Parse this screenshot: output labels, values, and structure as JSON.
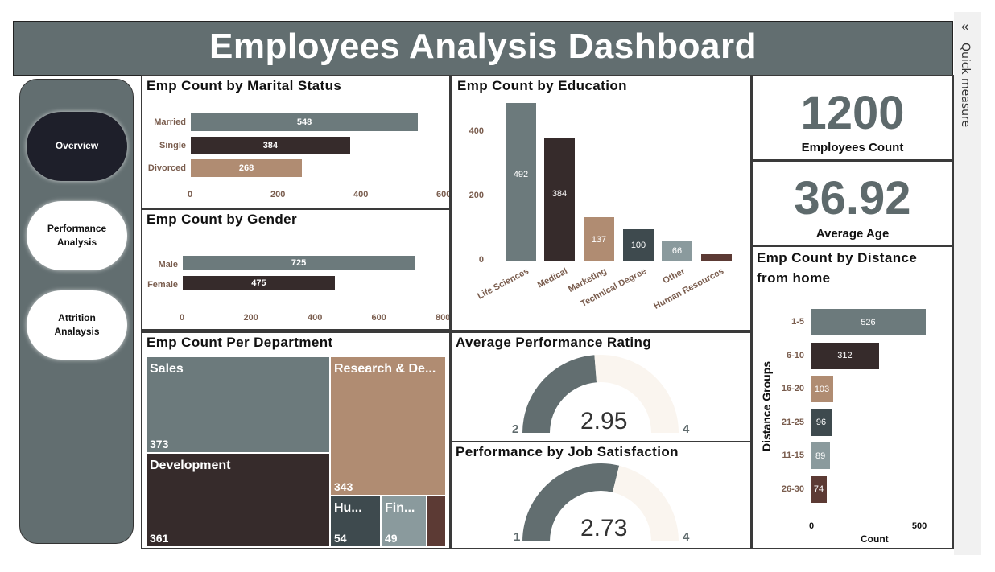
{
  "header": {
    "title": "Employees Analysis Dashboard"
  },
  "nav": {
    "overview": "Overview",
    "performance": "Performance\nAnalysis",
    "attrition": "Attrition\nAnalaysis"
  },
  "quick_measure": {
    "label": "Quick measure",
    "icon": "«"
  },
  "kpis": {
    "employees_count": {
      "value": "1200",
      "label": "Employees Count"
    },
    "average_age": {
      "value": "36.92",
      "label": "Average Age"
    }
  },
  "marital": {
    "title": "Emp Count by Marital Status",
    "ticks": [
      "0",
      "200",
      "400",
      "600"
    ]
  },
  "gender": {
    "title": "Emp Count by Gender",
    "ticks": [
      "0",
      "200",
      "400",
      "600",
      "800"
    ]
  },
  "education": {
    "title": "Emp Count by Education",
    "ticks": [
      "0",
      "200",
      "400"
    ]
  },
  "department": {
    "title": "Emp Count Per Department"
  },
  "perf_rating": {
    "title": "Average Performance Rating",
    "min": "2",
    "max": "4",
    "display": "2.95"
  },
  "job_sat": {
    "title": "Performance by Job Satisfaction",
    "min": "1",
    "max": "4",
    "display": "2.73"
  },
  "distance": {
    "title_line1": "Emp Count by Distance",
    "title_line2": "from home",
    "y_title": "Distance Groups",
    "x_title": "Count",
    "ticks": [
      "0",
      "500"
    ]
  },
  "chart_data": [
    {
      "type": "bar",
      "title": "Emp Count by Marital Status",
      "categories": [
        "Married",
        "Single",
        "Divorced"
      ],
      "values": [
        548,
        384,
        268
      ],
      "colors": [
        "#6c7a7c",
        "#362b2b",
        "#b08c72"
      ],
      "xlim": [
        0,
        600
      ]
    },
    {
      "type": "bar",
      "title": "Emp Count by Gender",
      "categories": [
        "Male",
        "Female"
      ],
      "values": [
        725,
        475
      ],
      "colors": [
        "#6c7a7c",
        "#362b2b"
      ],
      "xlim": [
        0,
        800
      ]
    },
    {
      "type": "bar",
      "title": "Emp Count by Education",
      "categories": [
        "Life Sciences",
        "Medical",
        "Marketing",
        "Technical Degree",
        "Other",
        "Human Resources"
      ],
      "values": [
        492,
        384,
        137,
        100,
        66,
        22
      ],
      "labels": [
        "492",
        "384",
        "137",
        "100",
        "66",
        ""
      ],
      "colors": [
        "#6c7a7c",
        "#362b2b",
        "#b08c72",
        "#3e4a4e",
        "#8a9a9d",
        "#5c3a34"
      ],
      "ylim": [
        0,
        500
      ]
    },
    {
      "type": "heatmap",
      "title": "Emp Count Per Department",
      "categories": [
        "Sales",
        "Research & De...",
        "Development",
        "Hu...",
        "Fin...",
        ""
      ],
      "values": [
        373,
        343,
        361,
        54,
        49,
        20
      ],
      "colors": [
        "#6c7a7c",
        "#b08c72",
        "#362b2b",
        "#3e4a4e",
        "#8a9a9d",
        "#5c3a34"
      ]
    },
    {
      "type": "bar",
      "title": "Emp Count by Distance from home",
      "categories": [
        "1-5",
        "6-10",
        "16-20",
        "21-25",
        "11-15",
        "26-30"
      ],
      "values": [
        526,
        312,
        103,
        96,
        89,
        74
      ],
      "colors": [
        "#6c7a7c",
        "#362b2b",
        "#b08c72",
        "#3e4a4e",
        "#8a9a9d",
        "#5c3a34"
      ],
      "xlim": [
        0,
        600
      ]
    },
    {
      "type": "gauge",
      "title": "Average Performance Rating",
      "value": 2.95,
      "min": 2,
      "max": 4
    },
    {
      "type": "gauge",
      "title": "Performance by Job Satisfaction",
      "value": 2.73,
      "min": 1,
      "max": 4
    }
  ]
}
